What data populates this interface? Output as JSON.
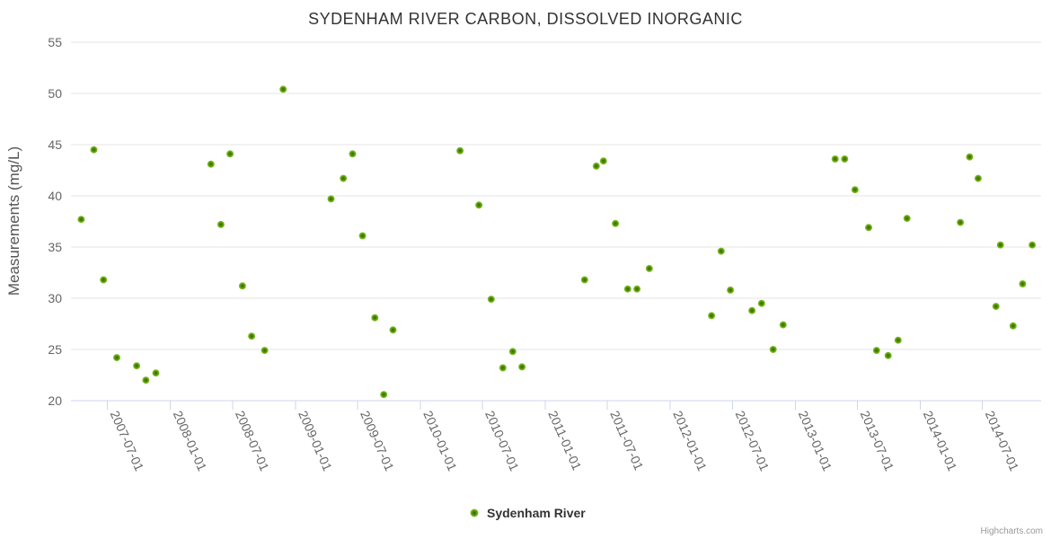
{
  "title": "SYDENHAM RIVER CARBON, DISSOLVED INORGANIC",
  "y_axis": {
    "title": "Measurements (mg/L)",
    "tick_labels": [
      "20",
      "25",
      "30",
      "35",
      "40",
      "45",
      "50",
      "55"
    ]
  },
  "x_axis": {
    "tick_labels": [
      "2007-07-01",
      "2008-01-01",
      "2008-07-01",
      "2009-01-01",
      "2009-07-01",
      "2010-01-01",
      "2010-07-01",
      "2011-01-01",
      "2011-07-01",
      "2012-01-01",
      "2012-07-01",
      "2013-01-01",
      "2013-07-01",
      "2014-01-01",
      "2014-07-01"
    ]
  },
  "legend": {
    "label": "Sydenham River"
  },
  "credit": "Highcharts.com",
  "colors": {
    "background": "#ffffff",
    "title": "#333333",
    "axis_title": "#555555",
    "tick_label": "#666666",
    "grid": "#e6e6e6",
    "axis_line": "#ccd6eb",
    "legend_text": "#333333",
    "credit": "#999999",
    "point_core": "#2d6500",
    "point_mid": "#4e8a05",
    "point_body": "#72ae14",
    "point_edge": "#8cc63f"
  },
  "chart_data": {
    "type": "scatter",
    "title": "SYDENHAM RIVER CARBON, DISSOLVED INORGANIC",
    "xlabel": "",
    "ylabel": "Measurements (mg/L)",
    "ylim": [
      20,
      55
    ],
    "yticks": [
      20,
      25,
      30,
      35,
      40,
      45,
      50,
      55
    ],
    "xlim": [
      "2007-03-17",
      "2014-12-20"
    ],
    "xticks": [
      "2007-07-01",
      "2008-01-01",
      "2008-07-01",
      "2009-01-01",
      "2009-07-01",
      "2010-01-01",
      "2010-07-01",
      "2011-01-01",
      "2011-07-01",
      "2012-01-01",
      "2012-07-01",
      "2013-01-01",
      "2013-07-01",
      "2014-01-01",
      "2014-07-01"
    ],
    "grid": true,
    "legend_position": "bottom-center",
    "series": [
      {
        "name": "Sydenham River",
        "data": [
          [
            "2007-04-16",
            37.7
          ],
          [
            "2007-05-23",
            44.5
          ],
          [
            "2007-06-20",
            31.8
          ],
          [
            "2007-07-29",
            24.2
          ],
          [
            "2007-09-25",
            23.4
          ],
          [
            "2007-10-22",
            22.0
          ],
          [
            "2007-11-20",
            22.7
          ],
          [
            "2008-04-29",
            43.1
          ],
          [
            "2008-05-28",
            37.2
          ],
          [
            "2008-06-24",
            44.1
          ],
          [
            "2008-07-30",
            31.2
          ],
          [
            "2008-08-26",
            26.3
          ],
          [
            "2008-10-03",
            24.9
          ],
          [
            "2008-11-26",
            50.4
          ],
          [
            "2009-04-15",
            39.7
          ],
          [
            "2009-05-21",
            41.7
          ],
          [
            "2009-06-17",
            44.1
          ],
          [
            "2009-07-16",
            36.1
          ],
          [
            "2009-08-21",
            28.1
          ],
          [
            "2009-09-16",
            20.6
          ],
          [
            "2009-10-13",
            26.9
          ],
          [
            "2010-04-27",
            44.4
          ],
          [
            "2010-06-21",
            39.1
          ],
          [
            "2010-07-27",
            29.9
          ],
          [
            "2010-08-30",
            23.2
          ],
          [
            "2010-09-28",
            24.8
          ],
          [
            "2010-10-25",
            23.3
          ],
          [
            "2011-04-26",
            31.8
          ],
          [
            "2011-05-30",
            42.9
          ],
          [
            "2011-06-20",
            43.4
          ],
          [
            "2011-07-25",
            37.3
          ],
          [
            "2011-08-30",
            30.9
          ],
          [
            "2011-09-26",
            30.9
          ],
          [
            "2011-11-01",
            32.9
          ],
          [
            "2012-05-01",
            28.3
          ],
          [
            "2012-05-29",
            34.6
          ],
          [
            "2012-06-25",
            30.8
          ],
          [
            "2012-08-27",
            28.8
          ],
          [
            "2012-09-24",
            29.5
          ],
          [
            "2012-10-28",
            25.0
          ],
          [
            "2012-11-26",
            27.4
          ],
          [
            "2013-04-27",
            43.6
          ],
          [
            "2013-05-25",
            43.6
          ],
          [
            "2013-06-24",
            40.6
          ],
          [
            "2013-08-03",
            36.9
          ],
          [
            "2013-08-26",
            24.9
          ],
          [
            "2013-09-29",
            24.4
          ],
          [
            "2013-10-28",
            25.9
          ],
          [
            "2013-11-23",
            37.8
          ],
          [
            "2014-04-28",
            37.4
          ],
          [
            "2014-05-25",
            43.8
          ],
          [
            "2014-06-19",
            41.7
          ],
          [
            "2014-08-10",
            29.2
          ],
          [
            "2014-08-23",
            35.2
          ],
          [
            "2014-09-29",
            27.3
          ],
          [
            "2014-10-27",
            31.4
          ],
          [
            "2014-11-24",
            35.2
          ]
        ]
      }
    ]
  }
}
